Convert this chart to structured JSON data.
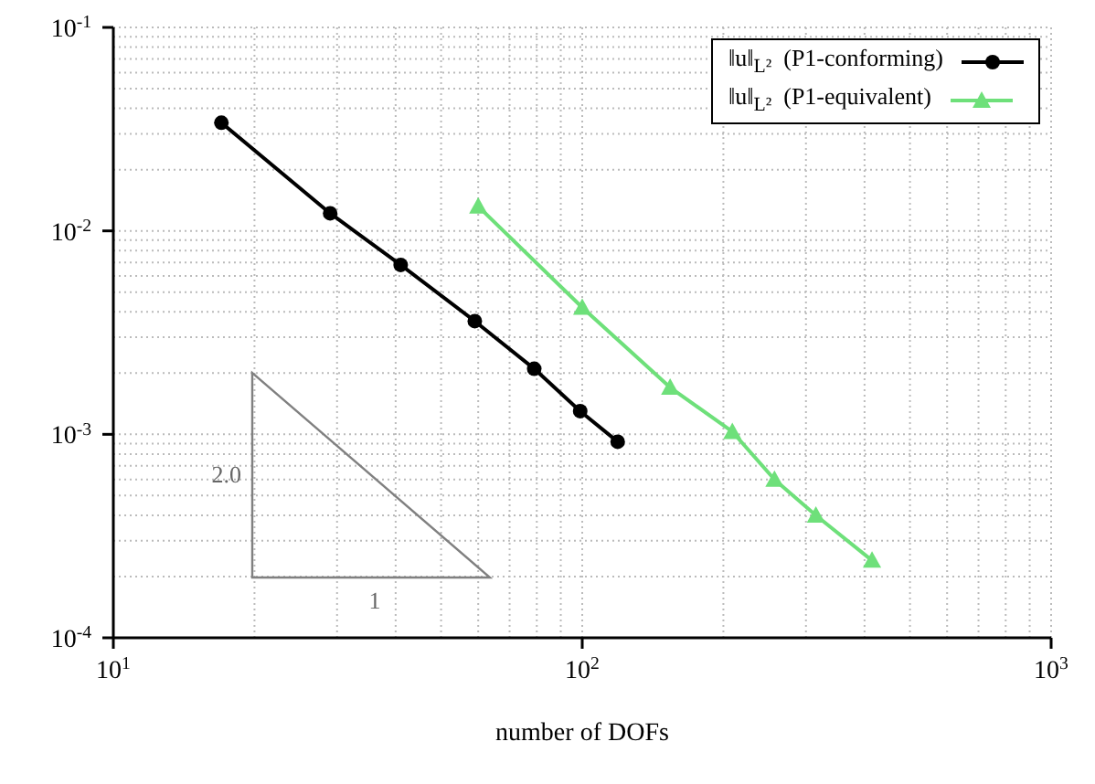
{
  "chart_data": {
    "type": "line",
    "xlabel": "number of DOFs",
    "log": "xy",
    "grid": true,
    "legend": "top right",
    "line_style": "solid",
    "xlim": [
      10,
      1000
    ],
    "xticks": [
      {
        "value": 10,
        "label": "10$^{1}$"
      },
      {
        "value": 100,
        "label": "10$^{2}$"
      },
      {
        "value": 1000,
        "label": "10$^{3}$"
      }
    ],
    "ylim": [
      0.0001,
      0.1
    ],
    "yticks": [
      {
        "value": 0.0001,
        "label": "10$^{-4}$"
      },
      {
        "value": 0.001,
        "label": "10$^{-3}$"
      },
      {
        "value": 0.01,
        "label": "10$^{-2}$"
      },
      {
        "value": 0.1,
        "label": "10$^{-1}$"
      }
    ],
    "series": [
      {
        "name": "‖u‖$_{L²}$  (P1-conforming)",
        "color": "#000000",
        "marker": "circle",
        "x": [
          17,
          29,
          41,
          59,
          79,
          99,
          119
        ],
        "values": [
          0.034,
          0.0122,
          0.0068,
          0.0036,
          0.0021,
          0.0013,
          0.00092
        ]
      },
      {
        "name": "‖u‖$_{L²}$  (P1-equivalent)",
        "color": "#6ee07a",
        "marker": "triangle",
        "x": [
          60,
          100,
          154,
          209,
          257,
          315,
          415
        ],
        "values": [
          0.0132,
          0.0042,
          0.0017,
          0.00103,
          0.0006,
          0.0004,
          0.00024
        ]
      }
    ],
    "annotations": [
      "2.0",
      "1"
    ]
  }
}
